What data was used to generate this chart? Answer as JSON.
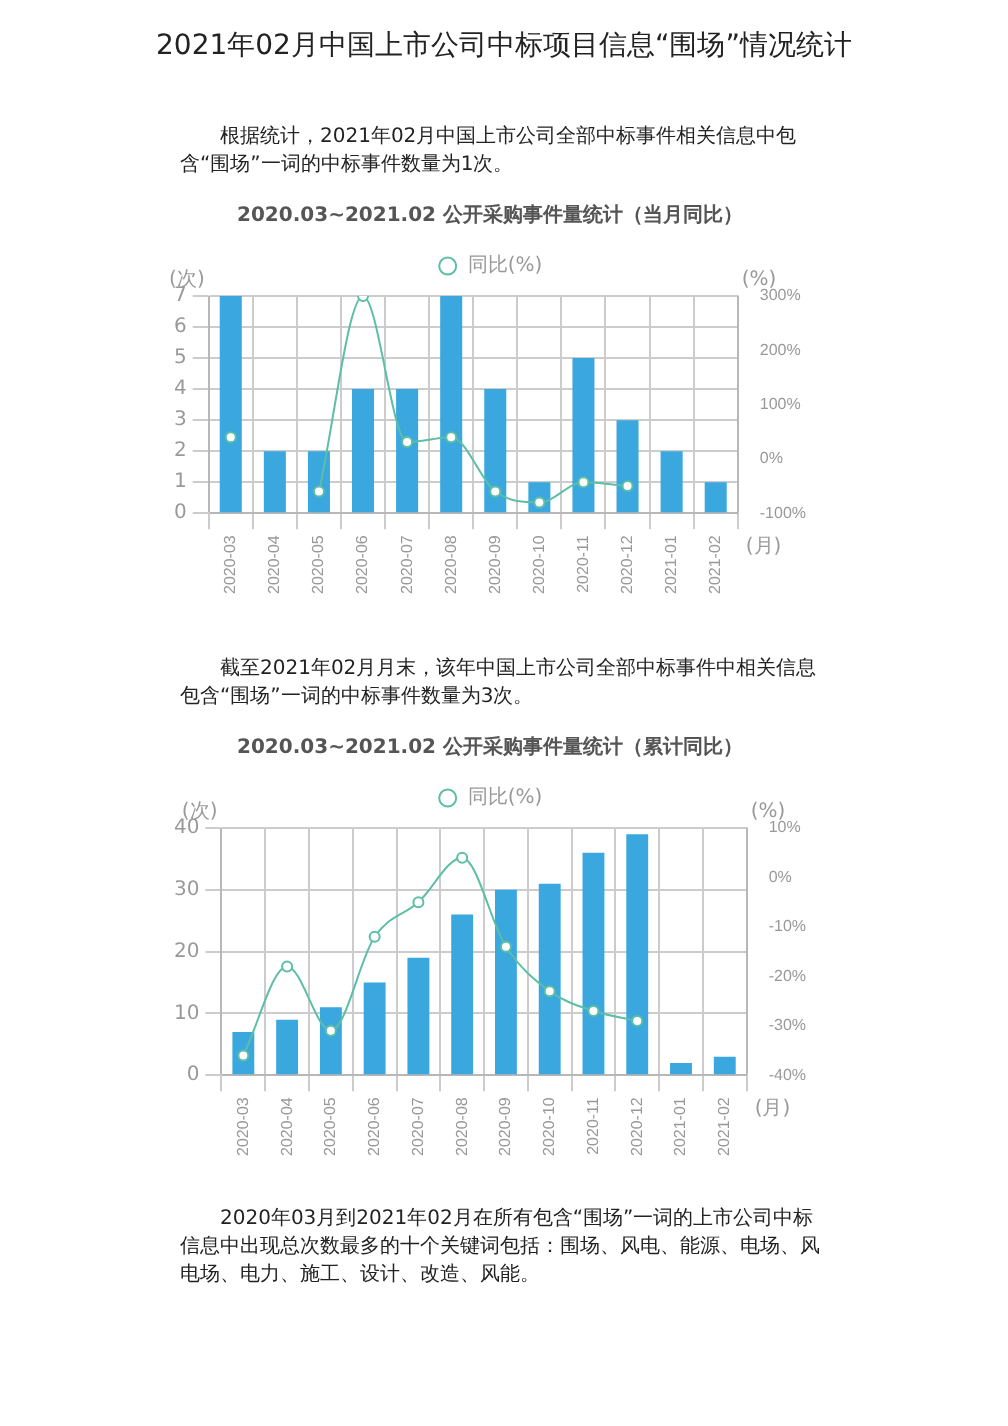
{
  "chart_data": [
    {
      "type": "bar",
      "title": "2020.03~2021.02 公开采购事件量统计（当月同比）",
      "ylabel": "(次)",
      "y2label": "(%)",
      "xlabel": "(月)",
      "annotations": [
        "2021年02月中国上市公司中标项目信息“围场”情况统计",
        "根据统计，2021年02月中国上市公司全部中标事件相关信息中包含“围场”一词的中标事件数量为1次。"
      ],
      "categories": [
        "2020-03",
        "2020-04",
        "2020-05",
        "2020-06",
        "2020-07",
        "2020-08",
        "2020-09",
        "2020-10",
        "2020-11",
        "2020-12",
        "2021-01",
        "2021-02"
      ],
      "series": [
        {
          "color": "#3aa8df",
          "values": [
            7,
            2,
            2,
            4,
            4,
            7,
            4,
            1,
            5,
            3,
            2,
            1
          ]
        },
        {
          "type": "line",
          "axis": "y2",
          "name": "同比(%)",
          "color": "#5cbfa5",
          "values": [
            40,
            null,
            -60,
            300,
            31,
            40,
            -60,
            -80,
            -43,
            -50,
            null,
            null
          ]
        }
      ],
      "ylim": [
        0,
        7
      ],
      "yticks": [
        0,
        1,
        2,
        3,
        4,
        5,
        6,
        7
      ],
      "y2lim": [
        -100,
        300
      ],
      "y2ticks": [
        {
          "value": -100,
          "label": "-100%"
        },
        {
          "value": 0,
          "label": "0%"
        },
        {
          "value": 100,
          "label": "100%"
        },
        {
          "value": 200,
          "label": "200%"
        },
        {
          "value": 300,
          "label": "300%"
        }
      ],
      "grid": true,
      "legend": "top",
      "marker": "circle"
    },
    {
      "type": "bar",
      "title": "2020.03~2021.02 公开采购事件量统计（累计同比）",
      "ylabel": "(次)",
      "y2label": "(%)",
      "xlabel": "(月)",
      "annotations": [
        "截至2021年02月月末，该年中国上市公司全部中标事件中相关信息包含“围场”一词的中标事件数量为3次。",
        "2020年03月到2021年02月在所有包含“围场”一词的上市公司中标信息中出现总次数最多的十个关键词包括：围场、风电、能源、电场、风电场、电力、施工、设计、改造、风能。"
      ],
      "categories": [
        "2020-03",
        "2020-04",
        "2020-05",
        "2020-06",
        "2020-07",
        "2020-08",
        "2020-09",
        "2020-10",
        "2020-11",
        "2020-12",
        "2021-01",
        "2021-02"
      ],
      "series": [
        {
          "color": "#3aa8df",
          "values": [
            7,
            9,
            11,
            15,
            19,
            26,
            30,
            31,
            36,
            39,
            2,
            3
          ]
        },
        {
          "type": "line",
          "axis": "y2",
          "name": "同比(%)",
          "color": "#5cbfa5",
          "values": [
            -36,
            -18,
            -31,
            -12,
            -5,
            4,
            -14,
            -23,
            -27,
            -29,
            null,
            null
          ]
        }
      ],
      "ylim": [
        0,
        40
      ],
      "yticks": [
        0,
        10,
        20,
        30,
        40
      ],
      "y2lim": [
        -40,
        10
      ],
      "y2ticks": [
        {
          "value": -40,
          "label": "-40%"
        },
        {
          "value": -30,
          "label": "-30%"
        },
        {
          "value": -20,
          "label": "-20%"
        },
        {
          "value": -10,
          "label": "-10%"
        },
        {
          "value": 0,
          "label": "0%"
        },
        {
          "value": 10,
          "label": "10%"
        }
      ],
      "grid": true,
      "legend": "top",
      "marker": "circle"
    }
  ]
}
